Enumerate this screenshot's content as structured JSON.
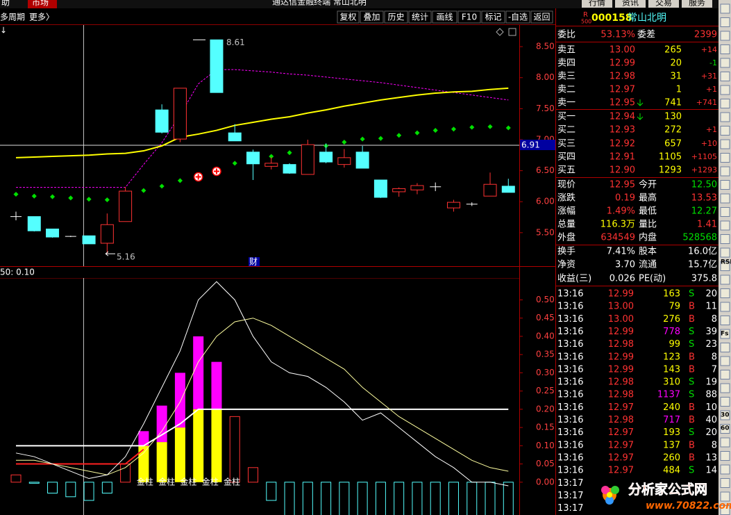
{
  "top_bar": {
    "left": [
      "助",
      "市场"
    ],
    "title": "通达信金融终端 常山北明",
    "right": [
      "行情",
      "资讯",
      "交易",
      "服务"
    ]
  },
  "toolbar": {
    "period": "多周期",
    "more": "更多〉",
    "buttons": [
      "复权",
      "叠加",
      "历史",
      "统计",
      "画线",
      "F10",
      "标记",
      "-自选",
      "返回"
    ]
  },
  "kline": {
    "arrow": "↓",
    "ylim": [
      4.96,
      8.86
    ],
    "yticks": [
      {
        "value": 5.5,
        "label": "5.50"
      },
      {
        "value": 6,
        "label": "6.00"
      },
      {
        "value": 6.5,
        "label": "6.50"
      },
      {
        "value": 7,
        "label": "7.00"
      },
      {
        "value": 7.5,
        "label": "7.50"
      },
      {
        "value": 8,
        "label": "8.00"
      },
      {
        "value": 8.5,
        "label": "8.50"
      }
    ],
    "open": [
      5.76,
      5.76,
      5.56,
      5.44,
      5.45,
      5.33,
      5.68,
      null,
      7.48,
      7.01,
      null,
      8.61,
      7.11,
      6.8,
      6.57,
      6.6,
      6.44,
      6.8,
      6.6,
      6.8,
      6.35,
      6.16,
      6.19,
      6.24,
      5.9,
      5.96,
      6.09,
      6.25
    ],
    "high": [
      5.84,
      5.76,
      5.56,
      5.45,
      5.45,
      5.81,
      6.24,
      null,
      7.57,
      7.83,
      null,
      8.61,
      7.25,
      6.84,
      6.72,
      6.62,
      7.0,
      6.94,
      6.85,
      6.9,
      6.35,
      6.23,
      6.3,
      6.31,
      6.03,
      5.99,
      6.47,
      6.37
    ],
    "low": [
      5.7,
      5.52,
      5.42,
      5.43,
      5.32,
      5.16,
      5.68,
      null,
      7.1,
      6.96,
      null,
      7.76,
      6.98,
      6.35,
      6.52,
      6.45,
      6.44,
      6.62,
      6.55,
      6.54,
      6.06,
      6.08,
      6.12,
      6.17,
      5.84,
      5.93,
      6.09,
      6.15
    ],
    "close": [
      5.76,
      5.53,
      5.43,
      5.44,
      5.32,
      5.63,
      6.17,
      null,
      7.12,
      7.83,
      null,
      7.76,
      6.98,
      6.61,
      6.62,
      6.46,
      6.92,
      6.64,
      6.71,
      6.54,
      6.07,
      6.21,
      6.26,
      6.24,
      5.99,
      5.96,
      6.28,
      6.15
    ],
    "ma_yellow": [
      6.71,
      6.72,
      6.73,
      6.74,
      6.75,
      6.77,
      6.78,
      6.82,
      6.9,
      7.04,
      7.09,
      7.15,
      7.23,
      7.28,
      7.33,
      7.37,
      7.43,
      7.48,
      7.54,
      7.59,
      7.64,
      7.68,
      7.72,
      7.75,
      7.77,
      7.78,
      7.81,
      7.83
    ],
    "ma_magenta": [
      6.23,
      6.23,
      6.23,
      6.23,
      6.23,
      6.23,
      6.23,
      6.6,
      6.95,
      7.4,
      7.9,
      8.13,
      8.13,
      8.11,
      8.09,
      8.06,
      8.04,
      8.01,
      7.98,
      7.95,
      7.92,
      7.88,
      7.84,
      7.8,
      7.76,
      7.72,
      7.68,
      7.64
    ],
    "dots": [
      6.12,
      6.09,
      6.08,
      6.06,
      6.04,
      6.03,
      6.09,
      6.18,
      6.25,
      6.34,
      null,
      null,
      6.62,
      6.68,
      6.73,
      6.79,
      6.84,
      6.9,
      6.96,
      7.01,
      7.02,
      7.07,
      7.11,
      7.15,
      7.17,
      7.2,
      7.21,
      7.19
    ],
    "buy_markers": [
      null,
      null,
      null,
      null,
      null,
      null,
      null,
      null,
      null,
      null,
      6.4,
      6.49,
      null,
      null,
      null,
      null,
      null,
      null,
      null,
      null,
      null,
      null,
      null,
      null,
      null,
      null,
      null,
      null
    ],
    "ref_line": 6.91,
    "max_label": 8.61,
    "min_label": 5.16,
    "note": "财"
  },
  "indicator": {
    "header": "50: 0.10",
    "ylim": [
      -0.09,
      0.56
    ],
    "yticks": [
      {
        "value": 0,
        "label": "0.00"
      },
      {
        "value": 0.05,
        "label": "0.05"
      },
      {
        "value": 0.1,
        "label": "0.10"
      },
      {
        "value": 0.15,
        "label": "0.15"
      },
      {
        "value": 0.2,
        "label": "0.20"
      },
      {
        "value": 0.25,
        "label": "0.25"
      },
      {
        "value": 0.3,
        "label": "0.30"
      },
      {
        "value": 0.35,
        "label": "0.35"
      },
      {
        "value": 0.4,
        "label": "0.40"
      },
      {
        "value": 0.45,
        "label": "0.45"
      },
      {
        "value": 0.5,
        "label": "0.50"
      }
    ],
    "bars": [
      0.02,
      -0.003,
      -0.03,
      -0.04,
      -0.05,
      -0.03,
      0.05,
      null,
      null,
      null,
      null,
      null,
      0.18,
      0.04,
      -0.05,
      -0.12,
      -0.12,
      -0.12,
      -0.12,
      -0.12,
      -0.12,
      -0.12,
      -0.12,
      -0.12,
      -0.12,
      -0.12,
      -0.12,
      -0.12
    ],
    "gold_low": [
      null,
      null,
      null,
      null,
      null,
      null,
      null,
      0.1,
      0.11,
      0.15,
      0.2,
      0.2,
      null,
      null,
      null,
      null,
      null,
      null,
      null,
      null,
      null,
      null,
      null,
      null,
      null,
      null,
      null,
      null
    ],
    "gold_high": [
      null,
      null,
      null,
      null,
      null,
      null,
      null,
      0.04,
      0.1,
      0.15,
      0.2,
      0.13,
      null,
      null,
      null,
      null,
      null,
      null,
      null,
      null,
      null,
      null,
      null,
      null,
      null,
      null,
      null,
      null
    ],
    "line_white": [
      0.08,
      0.07,
      0.05,
      0.03,
      0.01,
      0.02,
      0.07,
      0.16,
      0.26,
      0.36,
      0.5,
      0.55,
      0.5,
      0.4,
      0.33,
      0.3,
      0.29,
      0.26,
      0.22,
      0.17,
      0.19,
      0.15,
      0.11,
      0.07,
      0.04,
      0.0,
      0.0,
      -0.01
    ],
    "line_yellow": [
      0.06,
      0.06,
      0.05,
      0.04,
      0.03,
      0.02,
      0.04,
      0.08,
      0.14,
      0.22,
      0.33,
      0.4,
      0.44,
      0.45,
      0.43,
      0.4,
      0.37,
      0.34,
      0.31,
      0.26,
      0.22,
      0.18,
      0.15,
      0.12,
      0.09,
      0.06,
      0.04,
      0.03
    ],
    "line_red": [
      0.05,
      0.05,
      0.05,
      0.05,
      0.05,
      0.05,
      0.05,
      0.09,
      null,
      null,
      null,
      null,
      null,
      null,
      null,
      null,
      null,
      null,
      null,
      null,
      null,
      null,
      null,
      null,
      null,
      null,
      null,
      null
    ],
    "line_base": [
      0.1,
      0.1,
      0.1,
      0.1,
      0.1,
      0.1,
      0.1,
      0.1,
      0.13,
      0.16,
      0.2,
      0.2,
      0.2,
      0.2,
      0.2,
      0.2,
      0.2,
      0.2,
      0.2,
      0.2,
      0.2,
      0.2,
      0.2,
      0.2,
      0.2,
      0.2,
      0.2,
      0.2
    ],
    "column_labels": [
      "金柱",
      "金柱",
      "金柱",
      "金柱",
      "金柱"
    ]
  },
  "quote": {
    "badge_top": "R",
    "badge_bottom": "500",
    "code": "000158",
    "name": "常山北明",
    "weibi": [
      "委比",
      "53.13%",
      "委差",
      "2399"
    ],
    "book": [
      [
        "卖五",
        "13.00",
        "265",
        "+14"
      ],
      [
        "卖四",
        "12.99",
        "20",
        "-1"
      ],
      [
        "卖三",
        "12.98",
        "31",
        "+31"
      ],
      [
        "卖二",
        "12.97",
        "1",
        "+1"
      ],
      [
        "卖一",
        "12.95",
        "741",
        "+741"
      ],
      [
        "买一",
        "12.94",
        "130",
        ""
      ],
      [
        "买二",
        "12.93",
        "272",
        "+1"
      ],
      [
        "买三",
        "12.92",
        "657",
        "+10"
      ],
      [
        "买四",
        "12.91",
        "1105",
        "+1105"
      ],
      [
        "买五",
        "12.90",
        "1293",
        "+1293"
      ]
    ],
    "stats": [
      [
        "现价",
        "12.95",
        "今开",
        "12.50"
      ],
      [
        "涨跌",
        "0.19",
        "最高",
        "13.53"
      ],
      [
        "涨幅",
        "1.49%",
        "最低",
        "12.27"
      ],
      [
        "总量",
        "116.3万",
        "量比",
        "1.41"
      ],
      [
        "外盘",
        "634549",
        "内盘",
        "528568"
      ],
      [
        "换手",
        "7.41%",
        "股本",
        "16.0亿"
      ],
      [
        "净资",
        "3.70",
        "流通",
        "15.7亿"
      ],
      [
        "收益(三)",
        "0.026",
        "PE(动)",
        "375.8"
      ]
    ],
    "trades": [
      [
        "13:16",
        "12.99",
        "163",
        "S",
        "20"
      ],
      [
        "13:16",
        "13.00",
        "79",
        "B",
        "11"
      ],
      [
        "13:16",
        "13.00",
        "276",
        "B",
        "8"
      ],
      [
        "13:16",
        "12.99",
        "778",
        "S",
        "39"
      ],
      [
        "13:16",
        "12.98",
        "99",
        "S",
        "23"
      ],
      [
        "13:16",
        "12.99",
        "123",
        "B",
        "8"
      ],
      [
        "13:16",
        "12.99",
        "143",
        "B",
        "7"
      ],
      [
        "13:16",
        "12.98",
        "310",
        "S",
        "19"
      ],
      [
        "13:16",
        "12.98",
        "1137",
        "S",
        "88"
      ],
      [
        "13:16",
        "12.97",
        "240",
        "B",
        "10"
      ],
      [
        "13:16",
        "12.98",
        "717",
        "B",
        "40"
      ],
      [
        "13:16",
        "12.97",
        "193",
        "S",
        "20"
      ],
      [
        "13:16",
        "12.97",
        "137",
        "B",
        "8"
      ],
      [
        "13:16",
        "12.97",
        "260",
        "B",
        "13"
      ],
      [
        "13:16",
        "12.97",
        "484",
        "S",
        "14"
      ],
      [
        "13:17"
      ],
      [
        "13:17"
      ],
      [
        "13:17"
      ]
    ]
  },
  "icons": [
    "RSI",
    "Fs",
    "30",
    "60"
  ],
  "watermark": {
    "name": "分析家公式网",
    "url": "www.70822.com"
  }
}
